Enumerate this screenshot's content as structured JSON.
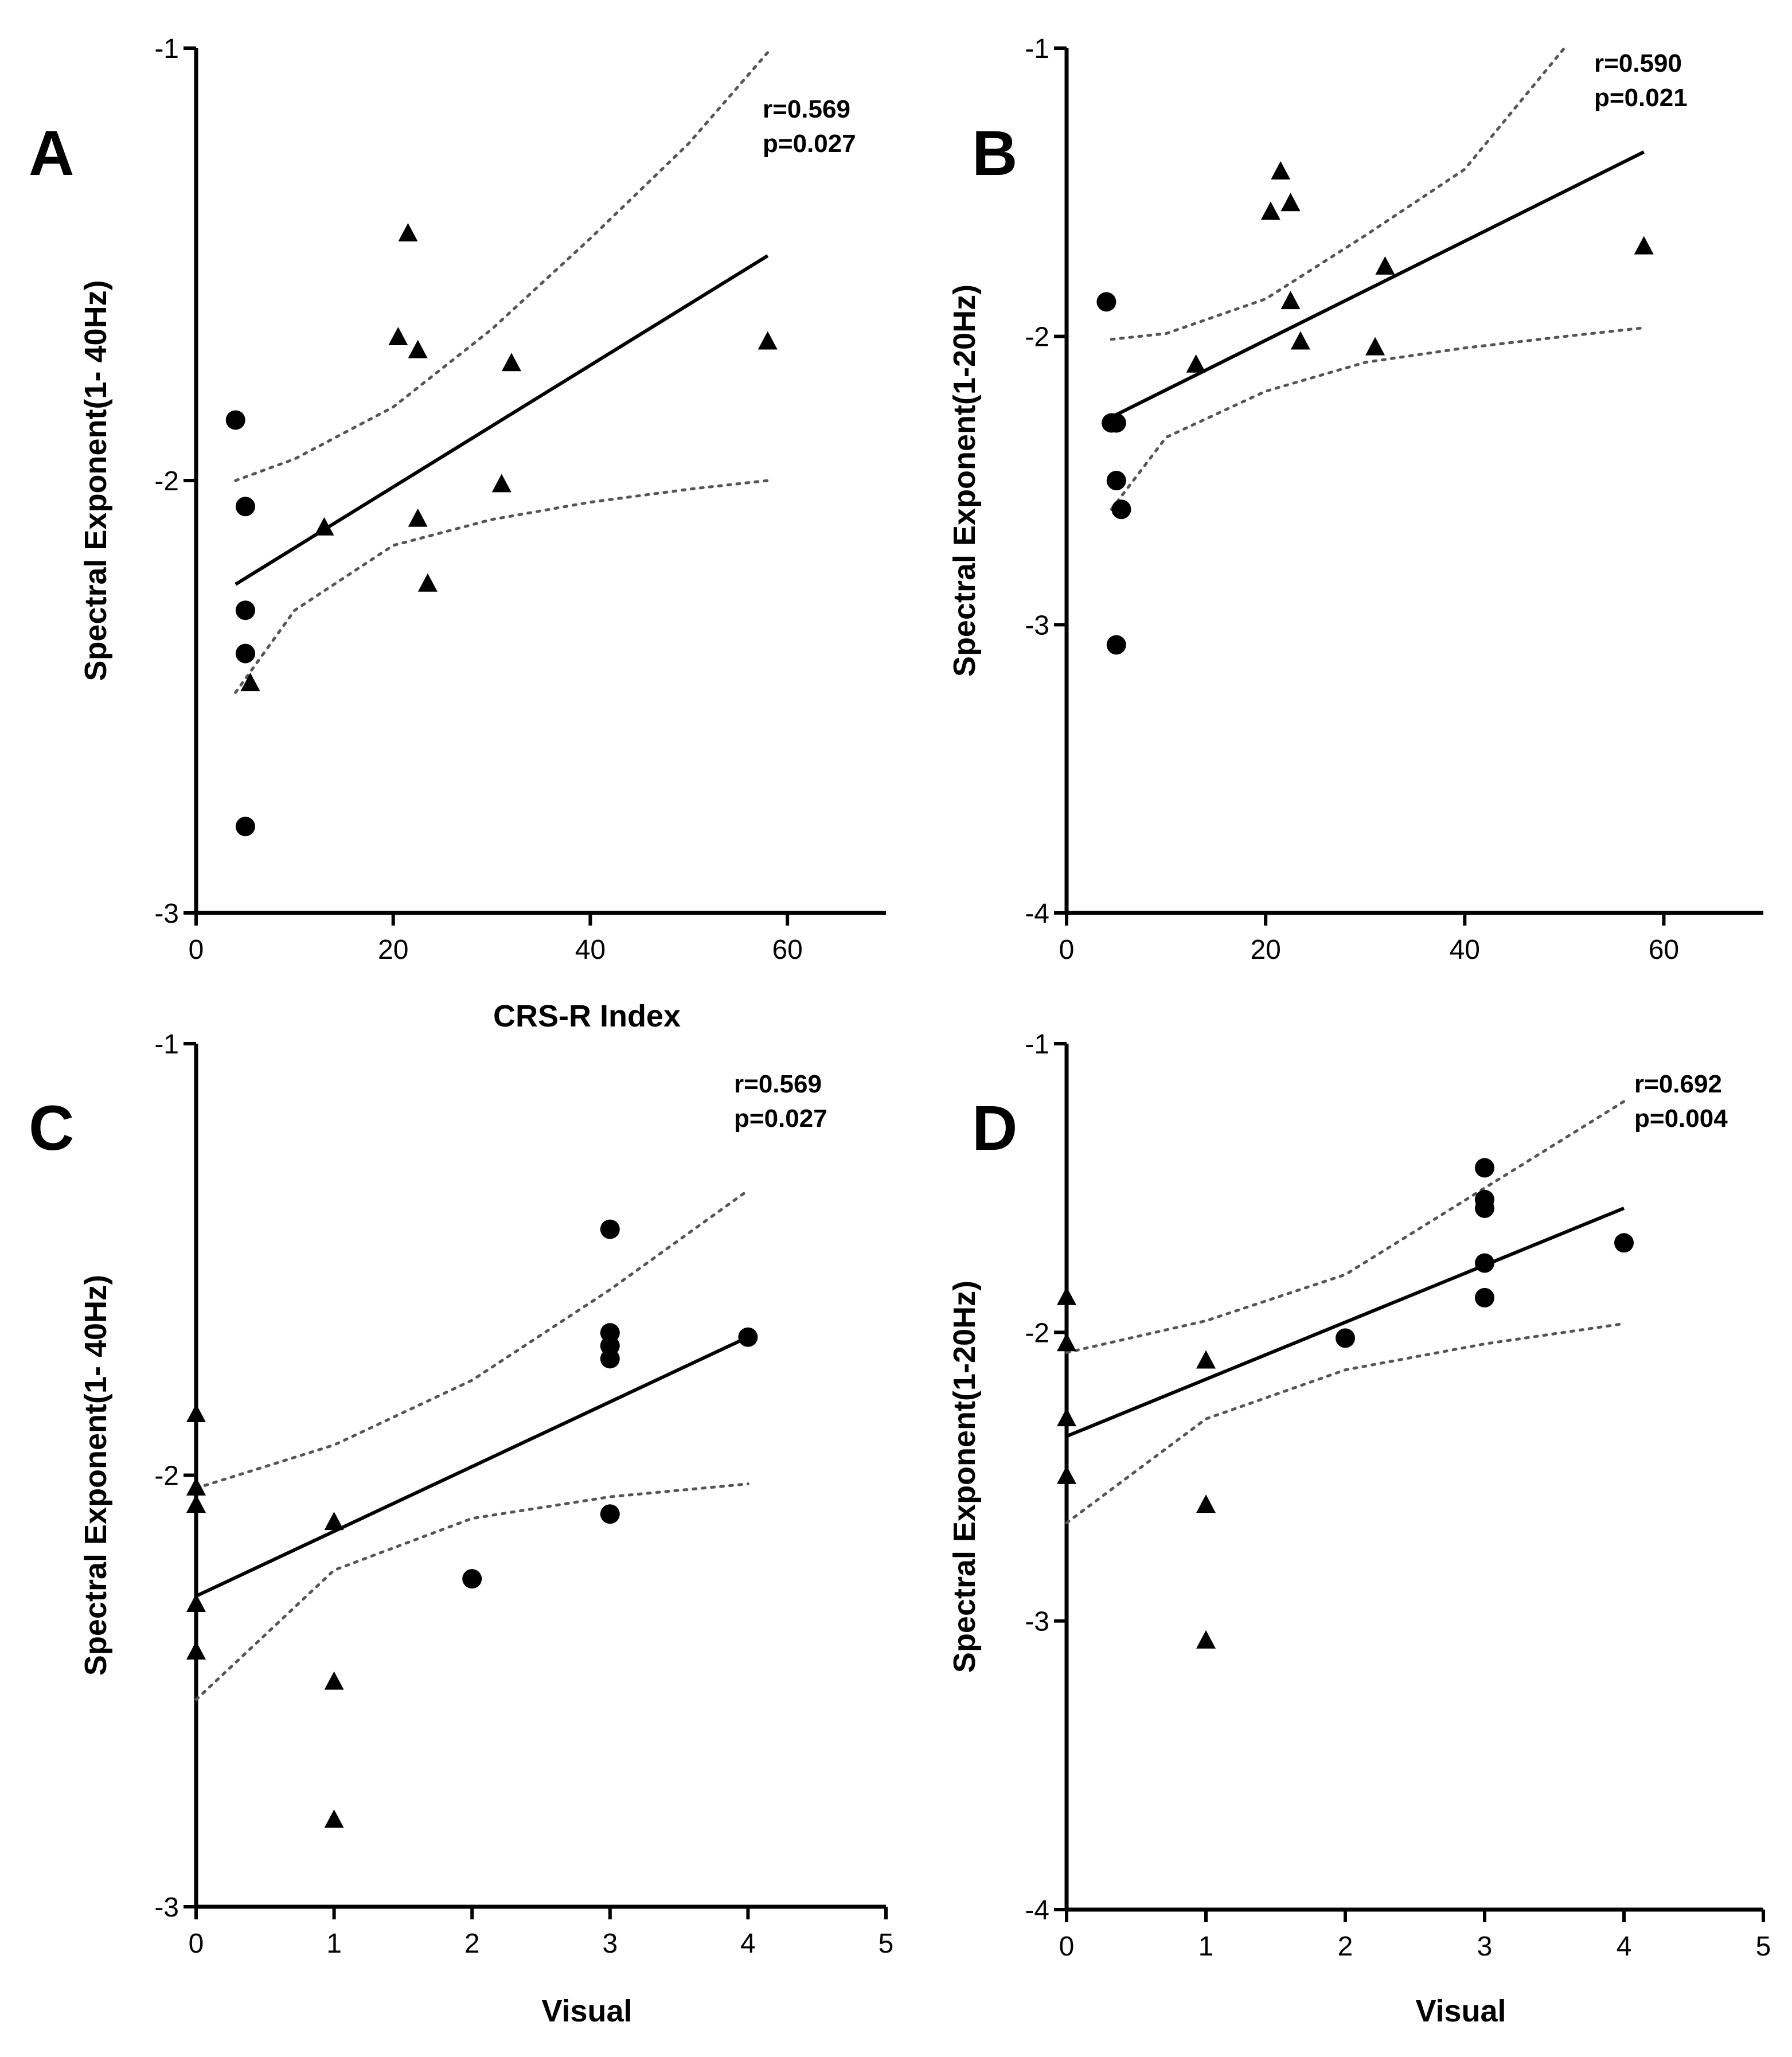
{
  "chart_data": [
    {
      "type": "scatter",
      "panel_label": "A",
      "xlabel": "CRS-R Index",
      "ylabel": "Spectral Exponent(1- 40Hz)",
      "xlim": [
        0,
        70
      ],
      "ylim": [
        -3,
        -1
      ],
      "xticks": [
        0,
        20,
        40,
        60
      ],
      "yticks": [
        -1,
        -2,
        -3
      ],
      "annotation": [
        "r=0.569",
        "p=0.027"
      ],
      "series": [
        {
          "name": "circles",
          "marker": "circle",
          "points": [
            [
              4,
              -1.86
            ],
            [
              5,
              -2.06
            ],
            [
              5,
              -2.3
            ],
            [
              5,
              -2.4
            ],
            [
              5,
              -2.8
            ]
          ]
        },
        {
          "name": "triangles",
          "marker": "triangle",
          "points": [
            [
              5.5,
              -2.47
            ],
            [
              13,
              -2.11
            ],
            [
              20.5,
              -1.67
            ],
            [
              21.5,
              -1.43
            ],
            [
              22.5,
              -1.7
            ],
            [
              22.5,
              -2.09
            ],
            [
              23.5,
              -2.24
            ],
            [
              31,
              -2.01
            ],
            [
              32,
              -1.73
            ],
            [
              58,
              -1.68
            ]
          ]
        }
      ],
      "fit": {
        "x": [
          4,
          58
        ],
        "y": [
          -2.24,
          -1.48
        ]
      },
      "ci_upper": [
        [
          4,
          -2.0
        ],
        [
          10,
          -1.95
        ],
        [
          20,
          -1.83
        ],
        [
          30,
          -1.65
        ],
        [
          40,
          -1.44
        ],
        [
          50,
          -1.22
        ],
        [
          58,
          -1.01
        ]
      ],
      "ci_lower": [
        [
          4,
          -2.49
        ],
        [
          10,
          -2.3
        ],
        [
          20,
          -2.15
        ],
        [
          30,
          -2.09
        ],
        [
          40,
          -2.05
        ],
        [
          50,
          -2.02
        ],
        [
          58,
          -2.0
        ]
      ]
    },
    {
      "type": "scatter",
      "panel_label": "B",
      "xlabel": "",
      "ylabel": "Spectral Exponent(1-20Hz)",
      "xlim": [
        0,
        70
      ],
      "ylim": [
        -4,
        -1
      ],
      "xticks": [
        0,
        20,
        40,
        60
      ],
      "yticks": [
        -1,
        -2,
        -3,
        -4
      ],
      "annotation": [
        "r=0.590",
        "p=0.021"
      ],
      "series": [
        {
          "name": "circles",
          "marker": "circle",
          "points": [
            [
              4,
              -1.88
            ],
            [
              4.5,
              -2.3
            ],
            [
              5,
              -2.3
            ],
            [
              5,
              -2.5
            ],
            [
              5.5,
              -2.6
            ],
            [
              5,
              -3.07
            ]
          ]
        },
        {
          "name": "triangles",
          "marker": "triangle",
          "points": [
            [
              13,
              -2.1
            ],
            [
              20.5,
              -1.57
            ],
            [
              21.5,
              -1.43
            ],
            [
              22.5,
              -1.54
            ],
            [
              22.5,
              -1.88
            ],
            [
              23.5,
              -2.02
            ],
            [
              31,
              -2.04
            ],
            [
              32,
              -1.76
            ],
            [
              58,
              -1.69
            ]
          ]
        }
      ],
      "fit": {
        "x": [
          4.5,
          58
        ],
        "y": [
          -2.28,
          -1.36
        ]
      },
      "ci_upper": [
        [
          4.5,
          -2.01
        ],
        [
          10,
          -1.99
        ],
        [
          20,
          -1.87
        ],
        [
          30,
          -1.65
        ],
        [
          40,
          -1.42
        ],
        [
          50,
          -1.0
        ]
      ],
      "ci_lower": [
        [
          4.5,
          -2.6
        ],
        [
          10,
          -2.35
        ],
        [
          20,
          -2.19
        ],
        [
          30,
          -2.09
        ],
        [
          40,
          -2.04
        ],
        [
          50,
          -2.0
        ],
        [
          58,
          -1.97
        ]
      ]
    },
    {
      "type": "scatter",
      "panel_label": "C",
      "xlabel": "Visual",
      "ylabel": "Spectral Exponent(1- 40Hz)",
      "xlim": [
        0,
        5
      ],
      "ylim": [
        -3,
        -1
      ],
      "xticks": [
        0,
        1,
        2,
        3,
        4,
        5
      ],
      "yticks": [
        -1,
        -2,
        -3
      ],
      "annotation": [
        "r=0.569",
        "p=0.027"
      ],
      "series": [
        {
          "name": "triangles",
          "marker": "triangle",
          "points": [
            [
              0,
              -1.86
            ],
            [
              0,
              -2.03
            ],
            [
              0,
              -2.07
            ],
            [
              0,
              -2.3
            ],
            [
              0,
              -2.41
            ],
            [
              1,
              -2.11
            ],
            [
              1,
              -2.48
            ],
            [
              1,
              -2.8
            ]
          ]
        },
        {
          "name": "circles",
          "marker": "circle",
          "points": [
            [
              2,
              -2.24
            ],
            [
              3,
              -1.43
            ],
            [
              3,
              -1.67
            ],
            [
              3,
              -1.7
            ],
            [
              3,
              -1.73
            ],
            [
              3,
              -2.09
            ],
            [
              4,
              -1.68
            ]
          ]
        }
      ],
      "fit": {
        "x": [
          0,
          4
        ],
        "y": [
          -2.28,
          -1.68
        ]
      },
      "ci_upper": [
        [
          0,
          -2.03
        ],
        [
          1,
          -1.93
        ],
        [
          2,
          -1.78
        ],
        [
          3,
          -1.57
        ],
        [
          4,
          -1.34
        ]
      ],
      "ci_lower": [
        [
          0,
          -2.52
        ],
        [
          1,
          -2.22
        ],
        [
          2,
          -2.1
        ],
        [
          3,
          -2.05
        ],
        [
          4,
          -2.02
        ]
      ]
    },
    {
      "type": "scatter",
      "panel_label": "D",
      "xlabel": "Visual",
      "ylabel": "Spectral Exponent(1-20Hz)",
      "xlim": [
        0,
        5
      ],
      "ylim": [
        -4,
        -1
      ],
      "xticks": [
        0,
        1,
        2,
        3,
        4,
        5
      ],
      "yticks": [
        -1,
        -2,
        -3,
        -4
      ],
      "annotation": [
        "r=0.692",
        "p=0.004"
      ],
      "series": [
        {
          "name": "triangles",
          "marker": "triangle",
          "points": [
            [
              0,
              -1.88
            ],
            [
              0,
              -2.04
            ],
            [
              0,
              -2.3
            ],
            [
              0,
              -2.5
            ],
            [
              1,
              -2.1
            ],
            [
              1,
              -2.6
            ],
            [
              1,
              -3.07
            ]
          ]
        },
        {
          "name": "circles",
          "marker": "circle",
          "points": [
            [
              2,
              -2.02
            ],
            [
              3,
              -1.43
            ],
            [
              3,
              -1.54
            ],
            [
              3,
              -1.57
            ],
            [
              3,
              -1.76
            ],
            [
              3,
              -1.88
            ],
            [
              4,
              -1.69
            ]
          ]
        }
      ],
      "fit": {
        "x": [
          0,
          4
        ],
        "y": [
          -2.36,
          -1.57
        ]
      },
      "ci_upper": [
        [
          0,
          -2.07
        ],
        [
          1,
          -1.96
        ],
        [
          2,
          -1.8
        ],
        [
          3,
          -1.5
        ],
        [
          4,
          -1.2
        ]
      ],
      "ci_lower": [
        [
          0,
          -2.66
        ],
        [
          1,
          -2.3
        ],
        [
          2,
          -2.13
        ],
        [
          3,
          -2.04
        ],
        [
          4,
          -1.97
        ]
      ]
    }
  ]
}
